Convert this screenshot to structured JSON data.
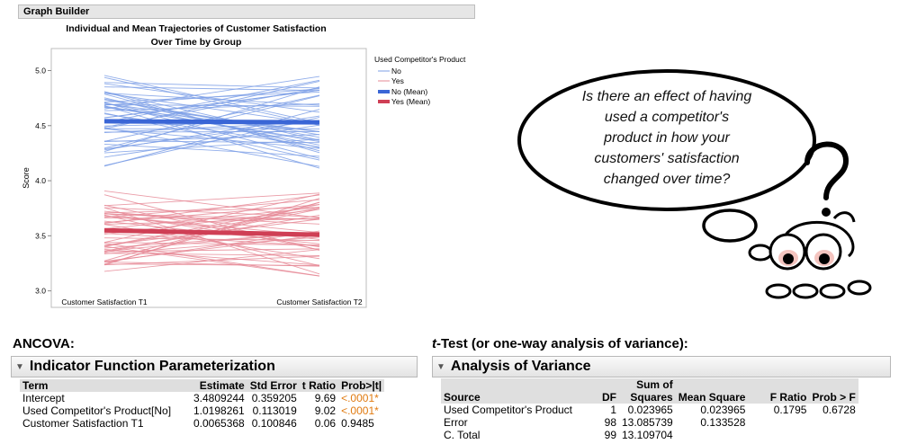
{
  "graph_builder": {
    "title": "Graph Builder"
  },
  "chart_data": {
    "type": "line",
    "title": "Individual and Mean Trajectories of Customer Satisfaction",
    "subtitle": "Over Time by Group",
    "xlabel": "",
    "ylabel": "Score",
    "categories": [
      "Customer Satisfaction T1",
      "Customer Satisfaction T2"
    ],
    "yticks": [
      "5.0",
      "4.5",
      "4.0",
      "3.5",
      "3.0"
    ],
    "ylim": [
      2.85,
      5.2
    ],
    "legend_title": "Used Competitor's Product",
    "legend_position": "right",
    "series": [
      {
        "name": "No",
        "color": "#7d9fe6",
        "kind": "individual"
      },
      {
        "name": "Yes",
        "color": "#e68a96",
        "kind": "individual"
      },
      {
        "name": "No (Mean)",
        "color": "#3a66d6",
        "kind": "mean",
        "values": [
          4.54,
          4.53
        ]
      },
      {
        "name": "Yes (Mean)",
        "color": "#cf3f55",
        "kind": "mean",
        "values": [
          3.55,
          3.51
        ]
      }
    ]
  },
  "bubble": {
    "text_lines": [
      "Is there an effect of having",
      "used a competitor's",
      "product in how your",
      "customers' satisfaction",
      "changed over time?"
    ]
  },
  "ancova": {
    "heading": "ANCOVA:",
    "panel_title": "Indicator Function Parameterization",
    "columns": [
      "Term",
      "Estimate",
      "Std Error",
      "t Ratio",
      "Prob>|t|"
    ],
    "rows": [
      {
        "term": "Intercept",
        "estimate": "3.4809244",
        "std_error": "0.359205",
        "t_ratio": "9.69",
        "prob": "<.0001*"
      },
      {
        "term": "Used Competitor's Product[No]",
        "estimate": "1.0198261",
        "std_error": "0.113019",
        "t_ratio": "9.02",
        "prob": "<.0001*"
      },
      {
        "term": "Customer Satisfaction T1",
        "estimate": "0.0065368",
        "std_error": "0.100846",
        "t_ratio": "0.06",
        "prob": "0.9485"
      }
    ]
  },
  "ttest": {
    "heading_italic": "t",
    "heading_rest": "-Test (or one-way analysis of variance):",
    "panel_title": "Analysis of Variance",
    "col_sum_top": "Sum of",
    "columns": [
      "Source",
      "DF",
      "Squares",
      "Mean Square",
      "F Ratio",
      "Prob > F"
    ],
    "rows": [
      {
        "source": "Used Competitor's Product",
        "df": "1",
        "ss": "0.023965",
        "ms": "0.023965",
        "f": "0.1795",
        "p": "0.6728"
      },
      {
        "source": "Error",
        "df": "98",
        "ss": "13.085739",
        "ms": "0.133528",
        "f": "",
        "p": ""
      },
      {
        "source": "C. Total",
        "df": "99",
        "ss": "13.109704",
        "ms": "",
        "f": "",
        "p": ""
      }
    ]
  }
}
